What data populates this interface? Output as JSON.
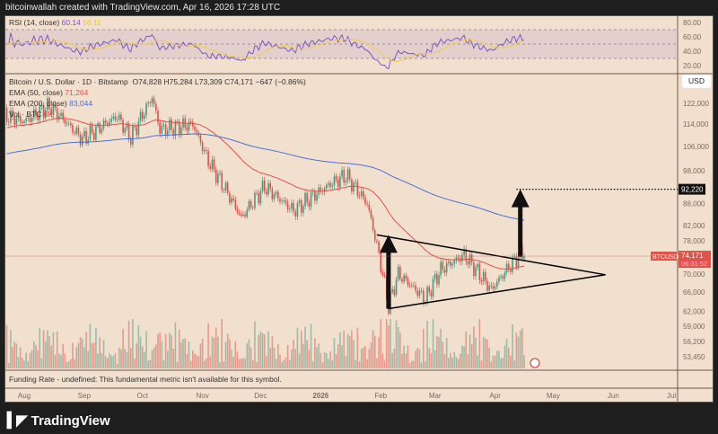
{
  "header": {
    "caption": "bitcoinwallah created with TradingView.com, Apr 16, 2026 17:28 UTC"
  },
  "rsi": {
    "label": "RSI (14, close)",
    "value": "60.14",
    "ma_value": "56.11",
    "ticks": [
      "80.00",
      "60.00",
      "40.00",
      "20.00"
    ],
    "colors": {
      "line": "#7e57c2",
      "ma": "#f2c94c"
    }
  },
  "legend": {
    "symbol": "Bitcoin / U.S. Dollar · 1D · Bitstamp",
    "open": "O74,828",
    "high": "H75,284",
    "low": "L73,309",
    "close": "C74,171",
    "change": "−647 (−0.86%)",
    "ema50_label": "EMA (50, close)",
    "ema50_value": "71,264",
    "ema200_label": "EMA (200, close)",
    "ema200_value": "83,044",
    "vol_label": "Vol · BTC",
    "vol_value": "6K"
  },
  "currency_button": "USD",
  "funding": {
    "text": "Funding Rate - undefined: This fundamental metric isn't available for this symbol."
  },
  "price_tag": {
    "symbol": "BTCUSD",
    "price": "74,171",
    "countdown": "06:31:52"
  },
  "target_tag": "92,220",
  "logo": {
    "text": "TradingView"
  },
  "colors": {
    "up": "#3f9c80",
    "down": "#e0524a",
    "ema50": "#e0524a",
    "ema200": "#4a6fd8",
    "background": "#f2e0cf"
  },
  "chart_data": {
    "type": "candlestick",
    "scale": "log",
    "ylim": [
      51500,
      128000
    ],
    "yticks": [
      122000,
      114000,
      106000,
      98000,
      88000,
      82000,
      78000,
      70000,
      66000,
      62000,
      59000,
      56200,
      53450
    ],
    "ytick_labels": [
      "122,000",
      "114,000",
      "106,000",
      "98,000",
      "88,000",
      "82,000",
      "78,000",
      "70,000",
      "66,000",
      "62,000",
      "59,000",
      "56,200",
      "53,450"
    ],
    "xticks": [
      {
        "date": "2025-08-01",
        "label": "Aug"
      },
      {
        "date": "2025-09-01",
        "label": "Sep"
      },
      {
        "date": "2025-10-01",
        "label": "Oct"
      },
      {
        "date": "2025-11-01",
        "label": "Nov"
      },
      {
        "date": "2025-12-01",
        "label": "Dec"
      },
      {
        "date": "2026-01-01",
        "label": "2026"
      },
      {
        "date": "2026-02-01",
        "label": "Feb"
      },
      {
        "date": "2026-03-01",
        "label": "Mar"
      },
      {
        "date": "2026-04-01",
        "label": "Apr"
      },
      {
        "date": "2026-05-01",
        "label": "May"
      },
      {
        "date": "2026-06-01",
        "label": "Jun"
      },
      {
        "date": "2026-07-01",
        "label": "Jul"
      }
    ],
    "close_path": [
      [
        "2025-07-20",
        117500
      ],
      [
        "2025-08-01",
        115000
      ],
      [
        "2025-08-14",
        121000
      ],
      [
        "2025-08-31",
        108500
      ],
      [
        "2025-09-18",
        117000
      ],
      [
        "2025-09-25",
        109000
      ],
      [
        "2025-10-06",
        124500
      ],
      [
        "2025-10-10",
        112000
      ],
      [
        "2025-10-27",
        114000
      ],
      [
        "2025-11-04",
        101000
      ],
      [
        "2025-11-21",
        84000
      ],
      [
        "2025-12-03",
        93000
      ],
      [
        "2025-12-18",
        86000
      ],
      [
        "2026-01-05",
        93500
      ],
      [
        "2026-01-14",
        96500
      ],
      [
        "2026-01-25",
        88000
      ],
      [
        "2026-02-05",
        63000
      ],
      [
        "2026-02-10",
        70000
      ],
      [
        "2026-02-24",
        64500
      ],
      [
        "2026-03-04",
        71000
      ],
      [
        "2026-03-16",
        74500
      ],
      [
        "2026-03-30",
        66500
      ],
      [
        "2026-04-08",
        71500
      ],
      [
        "2026-04-14",
        74500
      ],
      [
        "2026-04-16",
        74171
      ]
    ],
    "last_price": 74171,
    "target": 92220,
    "triangle": {
      "upper_start": [
        "2026-01-30",
        79500
      ],
      "lower_start": [
        "2026-02-05",
        62500
      ],
      "apex": [
        "2026-05-28",
        69800
      ]
    },
    "arrows": [
      {
        "date": "2026-02-05",
        "from": 62500,
        "to": 79500
      },
      {
        "date": "2026-04-14",
        "from": 74000,
        "to": 92220
      }
    ],
    "rsi_ylim": [
      15,
      85
    ],
    "rsi_bands": [
      70,
      30
    ]
  }
}
